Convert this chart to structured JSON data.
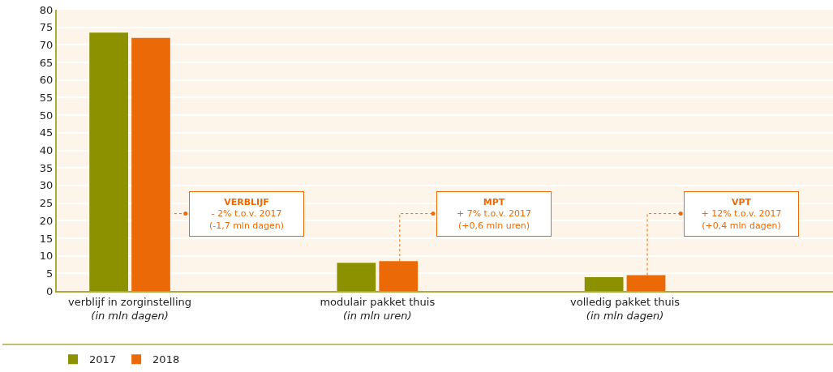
{
  "chart_data": {
    "type": "bar",
    "categories": [
      "verblijf in zorginstelling\n(in mln dagen)",
      "modulair pakket thuis\n(in mln uren)",
      "volledig pakket thuis\n(in mln dagen)"
    ],
    "series": [
      {
        "name": "2017",
        "color": "#8c9100",
        "values": [
          73.5,
          8.0,
          3.9
        ]
      },
      {
        "name": "2018",
        "color": "#eb6a07",
        "values": [
          72.0,
          8.5,
          4.5
        ]
      }
    ],
    "ylim": [
      0,
      80
    ],
    "yticks": [
      0,
      5,
      10,
      15,
      20,
      25,
      30,
      35,
      40,
      45,
      50,
      55,
      60,
      65,
      70,
      75,
      80
    ],
    "annotations": [
      "VERBLIJF\n- 2% t.o.v. 2017\n(-1,7 mln dagen)",
      "MPT\n+ 7% t.o.v. 2017\n(+0,6 mln uren)",
      "VPT\n+ 12% t.o.v. 2017\n(+0,4 mln dagen)"
    ],
    "grid": "y",
    "legend": "bottom left"
  }
}
